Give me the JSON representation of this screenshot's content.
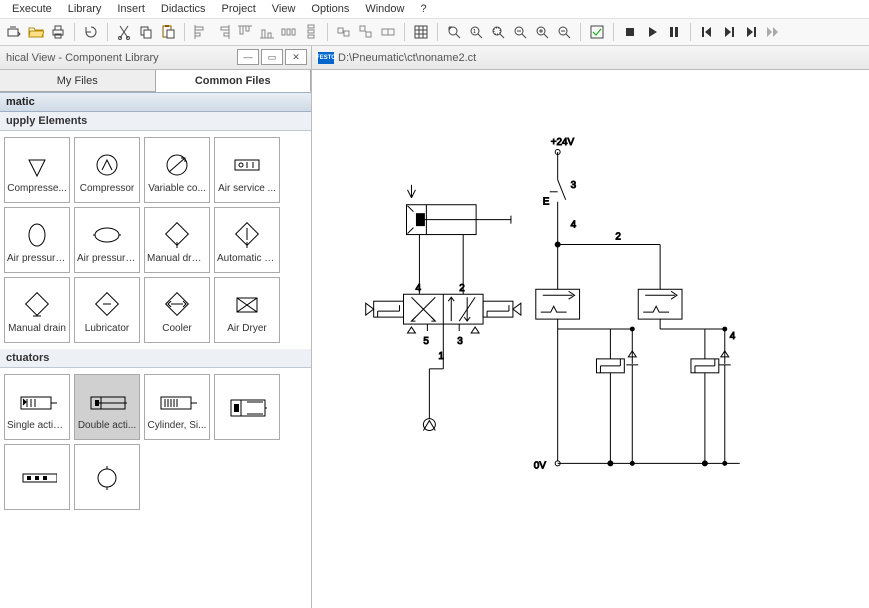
{
  "menu": {
    "items": [
      "Execute",
      "Library",
      "Insert",
      "Didactics",
      "Project",
      "View",
      "Options",
      "Window",
      "?"
    ]
  },
  "leftpanel": {
    "title": "hical View - Component Library",
    "tabs": [
      "My Files",
      "Common Files"
    ],
    "active_tab": 1,
    "cat1": "matic",
    "sub1": "upply Elements",
    "comps1": [
      {
        "label": "Compresse..."
      },
      {
        "label": "Compressor"
      },
      {
        "label": "Variable co..."
      },
      {
        "label": "Air service ..."
      },
      {
        "label": "Air pressure..."
      },
      {
        "label": "Air pressure..."
      },
      {
        "label": "Manual drai..."
      },
      {
        "label": "Automatic d..."
      },
      {
        "label": "Manual drain"
      },
      {
        "label": "Lubricator"
      },
      {
        "label": "Cooler"
      },
      {
        "label": "Air Dryer"
      }
    ],
    "sub2": "ctuators",
    "comps2": [
      {
        "label": "Single actin..."
      },
      {
        "label": "Double acti...",
        "sel": true
      },
      {
        "label": "Cylinder, Si..."
      },
      {
        "label": ""
      },
      {
        "label": ""
      },
      {
        "label": ""
      }
    ]
  },
  "doc": {
    "path": "D:\\Pneumatic\\ct\\noname2.ct"
  },
  "circuit": {
    "labels": {
      "v24": "+24V",
      "v0": "0V",
      "e": "E",
      "n1": "1",
      "n2": "2",
      "n3": "3",
      "n4": "4",
      "n5": "5"
    }
  }
}
